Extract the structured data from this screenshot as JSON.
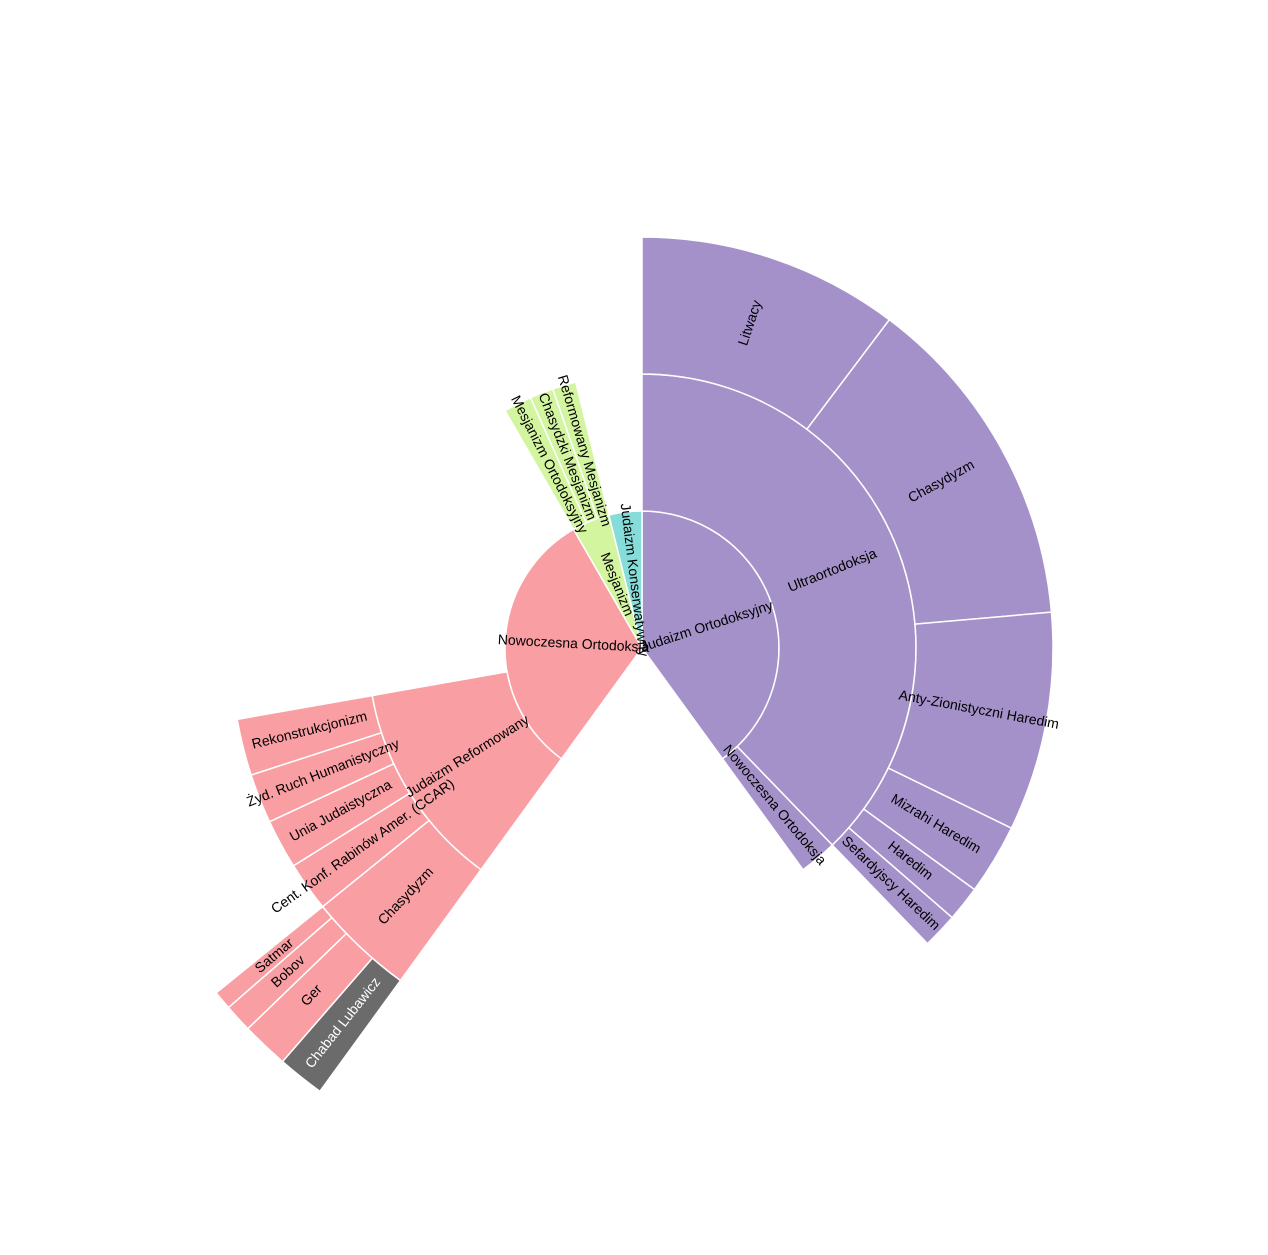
{
  "colors": {
    "orthodox": "#a491c9",
    "modern": "#f99ea3",
    "messianic": "#d3f5a0",
    "conservative": "#86dcd8",
    "chabad": "#6b6b6b",
    "separator": "#ffffff",
    "label": "#000000",
    "label_on_dark": "#ffffff"
  },
  "chart_data": {
    "type": "sunburst",
    "title": "",
    "ring_order": "clockwise from top",
    "nodes": [
      {
        "id": "ortho",
        "label": "Judaizm Ortodoksyjny",
        "depth": 1,
        "color": "orthodox",
        "start_deg": 0,
        "end_deg": 144
      },
      {
        "id": "ultra",
        "label": "Ultraortodoksja",
        "depth": 2,
        "color": "orthodox",
        "start_deg": 0,
        "end_deg": 136
      },
      {
        "id": "modern_o",
        "label": "Nowoczesna Ortodoksja",
        "depth": 2,
        "color": "orthodox",
        "start_deg": 136,
        "end_deg": 144
      },
      {
        "id": "litwacy",
        "label": "Litwacy",
        "depth": 3,
        "color": "orthodox",
        "start_deg": 0,
        "end_deg": 37
      },
      {
        "id": "chas_o",
        "label": "Chasydyzm",
        "depth": 3,
        "color": "orthodox",
        "start_deg": 37,
        "end_deg": 85
      },
      {
        "id": "anty",
        "label": "Anty-Zionistyczni Haredim",
        "depth": 3,
        "color": "orthodox",
        "start_deg": 85,
        "end_deg": 116
      },
      {
        "id": "mizrahi",
        "label": "Mizrahi Haredim",
        "depth": 3,
        "color": "orthodox",
        "start_deg": 116,
        "end_deg": 126
      },
      {
        "id": "haredim",
        "label": "Haredim",
        "depth": 3,
        "color": "orthodox",
        "start_deg": 126,
        "end_deg": 131
      },
      {
        "id": "sefard",
        "label": "Sefardyjscy Haredim",
        "depth": 3,
        "color": "orthodox",
        "start_deg": 131,
        "end_deg": 136
      },
      {
        "id": "nowo",
        "label": "Nowoczesna Ortodoksja",
        "depth": 1,
        "color": "modern",
        "start_deg": 216,
        "end_deg": 330
      },
      {
        "id": "reform",
        "label": "Judaizm Reformowany",
        "depth": 2,
        "color": "modern",
        "start_deg": 216,
        "end_deg": 260
      },
      {
        "id": "chas_m",
        "label": "Chasydyzm",
        "depth": 3,
        "color": "modern",
        "start_deg": 216,
        "end_deg": 231
      },
      {
        "id": "ccar",
        "label": "Cent. Konf. Rabinów Amer. (CCAR)",
        "depth": 3,
        "color": "modern",
        "start_deg": 231,
        "end_deg": 238
      },
      {
        "id": "unia",
        "label": "Unia Judaistyczna",
        "depth": 3,
        "color": "modern",
        "start_deg": 238,
        "end_deg": 245
      },
      {
        "id": "zyd",
        "label": "Żyd. Ruch Humanistyczny",
        "depth": 3,
        "color": "modern",
        "start_deg": 245,
        "end_deg": 252
      },
      {
        "id": "rekon",
        "label": "Rekonstrukcjonizm",
        "depth": 3,
        "color": "modern",
        "start_deg": 252,
        "end_deg": 260
      },
      {
        "id": "chabad",
        "label": "Chabad Lubawicz",
        "depth": 4,
        "color": "chabad",
        "start_deg": 216,
        "end_deg": 221
      },
      {
        "id": "ger",
        "label": "Ger",
        "depth": 4,
        "color": "modern",
        "start_deg": 221,
        "end_deg": 226
      },
      {
        "id": "bobov",
        "label": "Bobov",
        "depth": 4,
        "color": "modern",
        "start_deg": 226,
        "end_deg": 229
      },
      {
        "id": "satmar",
        "label": "Satmar",
        "depth": 4,
        "color": "modern",
        "start_deg": 229,
        "end_deg": 231
      },
      {
        "id": "mesjan",
        "label": "Mesjanizm",
        "depth": 1,
        "color": "messianic",
        "start_deg": 330,
        "end_deg": 346
      },
      {
        "id": "mo",
        "label": "Mesjanizm Ortodoksyjny",
        "depth": 2,
        "color": "messianic",
        "start_deg": 330,
        "end_deg": 336
      },
      {
        "id": "cm",
        "label": "Chasydzki Mesjanizm",
        "depth": 2,
        "color": "messianic",
        "start_deg": 336,
        "end_deg": 341
      },
      {
        "id": "rm",
        "label": "Reformowany Mesjanizm",
        "depth": 2,
        "color": "messianic",
        "start_deg": 341,
        "end_deg": 346
      },
      {
        "id": "konserw",
        "label": "Judaizm Konserwatywny",
        "depth": 1,
        "color": "conservative",
        "start_deg": 346,
        "end_deg": 360
      }
    ]
  }
}
